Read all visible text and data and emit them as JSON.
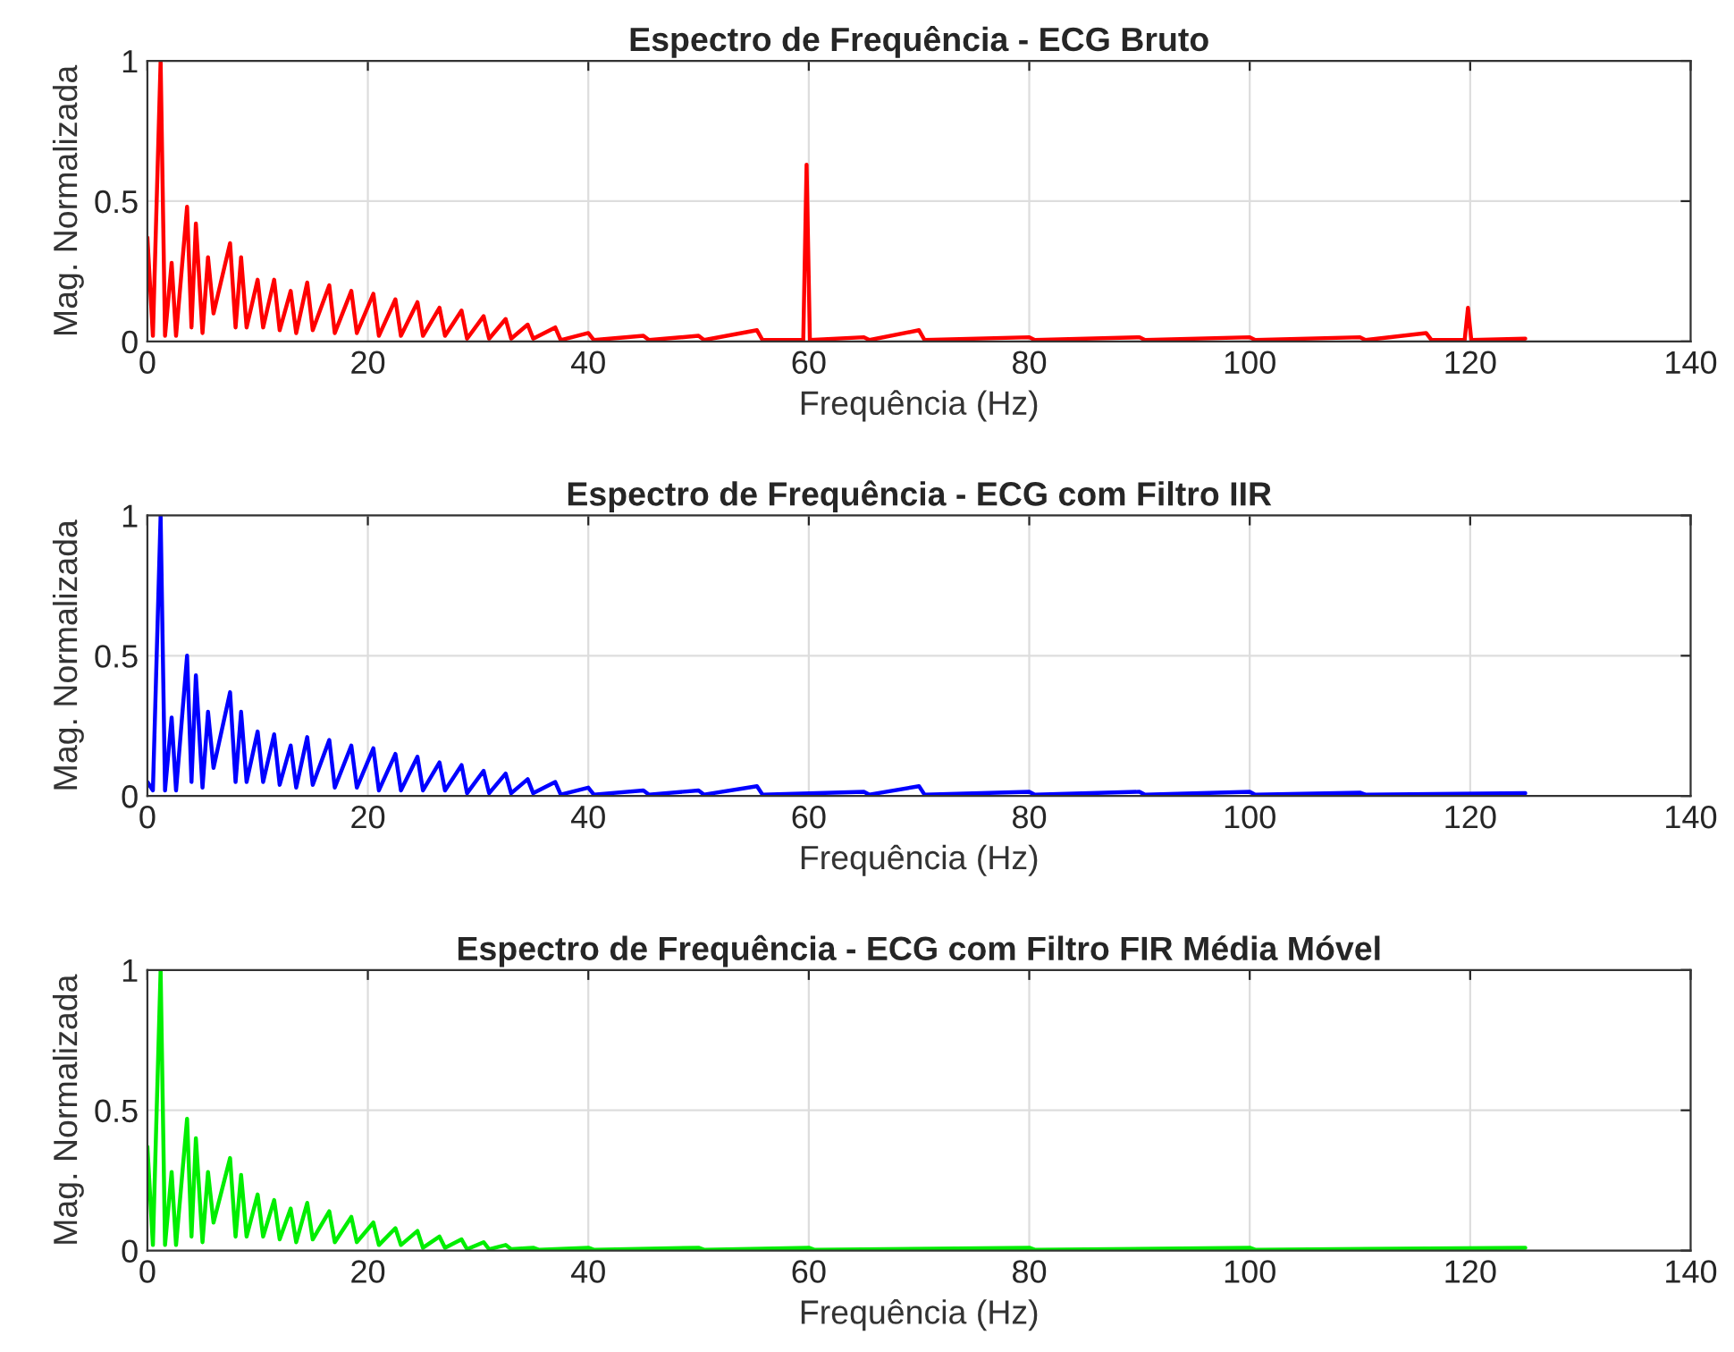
{
  "chart_data": [
    {
      "type": "line",
      "title": "Espectro de Frequência - ECG Bruto",
      "xlabel": "Frequência (Hz)",
      "ylabel": "Mag. Normalizada",
      "xlim": [
        0,
        140
      ],
      "xticks": [
        0,
        20,
        40,
        60,
        80,
        100,
        120,
        140
      ],
      "ylim": [
        0,
        1
      ],
      "yticks": [
        0,
        0.5,
        1
      ],
      "grid": true,
      "series": [
        {
          "color": "#ff0000",
          "x": [
            0,
            0.5,
            1.2,
            1.6,
            2.2,
            2.6,
            3.6,
            4,
            4.4,
            5,
            5.5,
            6,
            7.5,
            8,
            8.5,
            9,
            10,
            10.5,
            11.5,
            12,
            13,
            13.5,
            14.5,
            15,
            16.5,
            17,
            18.5,
            19,
            20.5,
            21,
            22.5,
            23,
            24.5,
            25,
            26.5,
            27,
            28.5,
            29,
            30.5,
            31,
            32.5,
            33,
            34.5,
            35,
            37,
            37.5,
            40,
            40.5,
            45,
            45.5,
            50,
            50.5,
            55.3,
            55.8,
            59.5,
            59.8,
            60.1,
            65,
            65.5,
            70,
            70.5,
            80,
            80.5,
            90,
            90.5,
            100,
            100.5,
            110,
            110.5,
            116,
            116.5,
            119.5,
            119.8,
            120.1,
            125
          ],
          "values": [
            0.37,
            0.02,
            1.0,
            0.02,
            0.28,
            0.02,
            0.48,
            0.05,
            0.42,
            0.03,
            0.3,
            0.1,
            0.35,
            0.05,
            0.3,
            0.05,
            0.22,
            0.05,
            0.22,
            0.04,
            0.18,
            0.03,
            0.21,
            0.04,
            0.2,
            0.03,
            0.18,
            0.03,
            0.17,
            0.02,
            0.15,
            0.02,
            0.14,
            0.02,
            0.12,
            0.02,
            0.11,
            0.01,
            0.09,
            0.01,
            0.08,
            0.01,
            0.06,
            0.01,
            0.05,
            0.005,
            0.03,
            0.005,
            0.02,
            0.005,
            0.02,
            0.005,
            0.04,
            0.005,
            0.005,
            0.63,
            0.005,
            0.015,
            0.005,
            0.04,
            0.005,
            0.015,
            0.005,
            0.015,
            0.005,
            0.015,
            0.005,
            0.015,
            0.005,
            0.03,
            0.005,
            0.005,
            0.12,
            0.005,
            0.01
          ]
        }
      ]
    },
    {
      "type": "line",
      "title": "Espectro de Frequência - ECG com Filtro IIR",
      "xlabel": "Frequência (Hz)",
      "ylabel": "Mag. Normalizada",
      "xlim": [
        0,
        140
      ],
      "xticks": [
        0,
        20,
        40,
        60,
        80,
        100,
        120,
        140
      ],
      "ylim": [
        0,
        1
      ],
      "yticks": [
        0,
        0.5,
        1
      ],
      "grid": true,
      "series": [
        {
          "color": "#0000ff",
          "x": [
            0,
            0.5,
            1.2,
            1.6,
            2.2,
            2.6,
            3.6,
            4,
            4.4,
            5,
            5.5,
            6,
            7.5,
            8,
            8.5,
            9,
            10,
            10.5,
            11.5,
            12,
            13,
            13.5,
            14.5,
            15,
            16.5,
            17,
            18.5,
            19,
            20.5,
            21,
            22.5,
            23,
            24.5,
            25,
            26.5,
            27,
            28.5,
            29,
            30.5,
            31,
            32.5,
            33,
            34.5,
            35,
            37,
            37.5,
            40,
            40.5,
            45,
            45.5,
            50,
            50.5,
            55.3,
            55.8,
            65,
            65.5,
            70,
            70.5,
            80,
            80.5,
            90,
            90.5,
            100,
            100.5,
            110,
            110.5,
            125
          ],
          "values": [
            0.05,
            0.02,
            1.0,
            0.02,
            0.28,
            0.02,
            0.5,
            0.05,
            0.43,
            0.03,
            0.3,
            0.1,
            0.37,
            0.05,
            0.3,
            0.05,
            0.23,
            0.05,
            0.22,
            0.04,
            0.18,
            0.03,
            0.21,
            0.04,
            0.2,
            0.03,
            0.18,
            0.03,
            0.17,
            0.02,
            0.15,
            0.02,
            0.14,
            0.02,
            0.12,
            0.02,
            0.11,
            0.01,
            0.09,
            0.01,
            0.08,
            0.01,
            0.06,
            0.01,
            0.05,
            0.005,
            0.03,
            0.005,
            0.02,
            0.005,
            0.02,
            0.005,
            0.035,
            0.005,
            0.015,
            0.005,
            0.035,
            0.005,
            0.015,
            0.005,
            0.015,
            0.005,
            0.015,
            0.005,
            0.012,
            0.005,
            0.01
          ]
        }
      ]
    },
    {
      "type": "line",
      "title": "Espectro de Frequência - ECG com Filtro FIR Média Móvel",
      "xlabel": "Frequência (Hz)",
      "ylabel": "Mag. Normalizada",
      "xlim": [
        0,
        140
      ],
      "xticks": [
        0,
        20,
        40,
        60,
        80,
        100,
        120,
        140
      ],
      "ylim": [
        0,
        1
      ],
      "yticks": [
        0,
        0.5,
        1
      ],
      "grid": true,
      "series": [
        {
          "color": "#00ee00",
          "x": [
            0,
            0.5,
            1.2,
            1.6,
            2.2,
            2.6,
            3.6,
            4,
            4.4,
            5,
            5.5,
            6,
            7.5,
            8,
            8.5,
            9,
            10,
            10.5,
            11.5,
            12,
            13,
            13.5,
            14.5,
            15,
            16.5,
            17,
            18.5,
            19,
            20.5,
            21,
            22.5,
            23,
            24.5,
            25,
            26.5,
            27,
            28.5,
            29,
            30.5,
            31,
            32.5,
            33,
            35,
            35.5,
            40,
            40.5,
            50,
            50.5,
            60,
            60.5,
            80,
            80.5,
            100,
            100.5,
            125
          ],
          "values": [
            0.37,
            0.02,
            1.0,
            0.02,
            0.28,
            0.02,
            0.47,
            0.05,
            0.4,
            0.03,
            0.28,
            0.1,
            0.33,
            0.05,
            0.27,
            0.05,
            0.2,
            0.05,
            0.18,
            0.04,
            0.15,
            0.03,
            0.17,
            0.04,
            0.14,
            0.03,
            0.12,
            0.03,
            0.1,
            0.02,
            0.08,
            0.02,
            0.07,
            0.01,
            0.05,
            0.01,
            0.04,
            0.005,
            0.03,
            0.005,
            0.02,
            0.005,
            0.01,
            0.003,
            0.01,
            0.003,
            0.01,
            0.003,
            0.01,
            0.003,
            0.01,
            0.003,
            0.01,
            0.003,
            0.01
          ]
        }
      ]
    }
  ]
}
